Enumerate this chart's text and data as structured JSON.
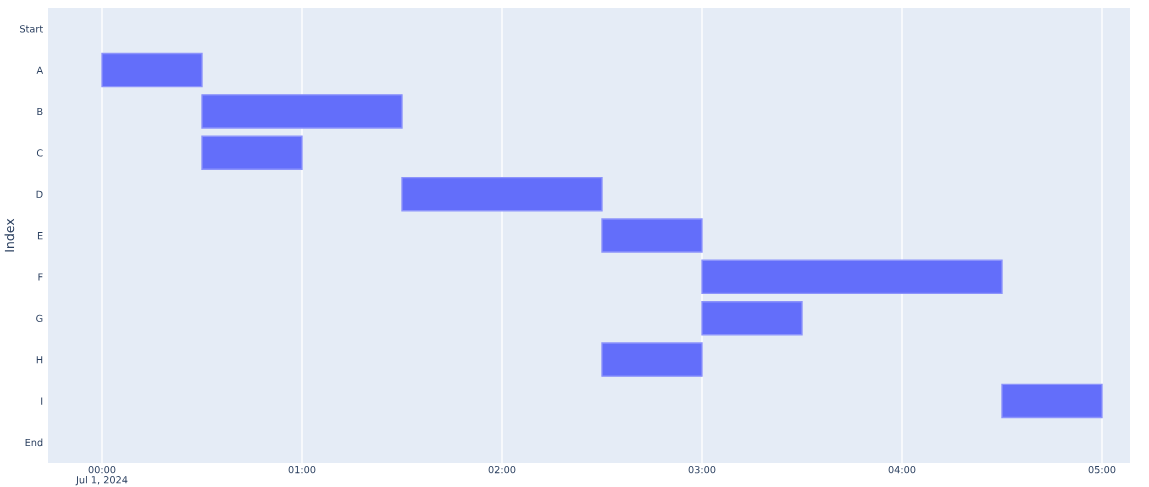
{
  "chart_data": {
    "type": "bar",
    "orientation": "horizontal",
    "ylabel": "Index",
    "categories": [
      "Start",
      "A",
      "B",
      "C",
      "D",
      "E",
      "F",
      "G",
      "H",
      "I",
      "End"
    ],
    "base": [
      null,
      0,
      0.5,
      0.5,
      1.5,
      2.5,
      3.0,
      3.0,
      2.5,
      4.5,
      null
    ],
    "values": [
      null,
      0.5,
      1.0,
      0.5,
      1.0,
      0.5,
      1.5,
      0.5,
      0.5,
      0.5,
      null
    ],
    "color": "#636efa",
    "xlim": [
      -0.27,
      5.14
    ],
    "xticks": [
      {
        "value": 0,
        "label": "00:00\nJul 1, 2024"
      },
      {
        "value": 1,
        "label": "01:00"
      },
      {
        "value": 2,
        "label": "02:00"
      },
      {
        "value": 3,
        "label": "03:00"
      },
      {
        "value": 4,
        "label": "04:00"
      },
      {
        "value": 5,
        "label": "05:00"
      }
    ],
    "grid": "x"
  }
}
